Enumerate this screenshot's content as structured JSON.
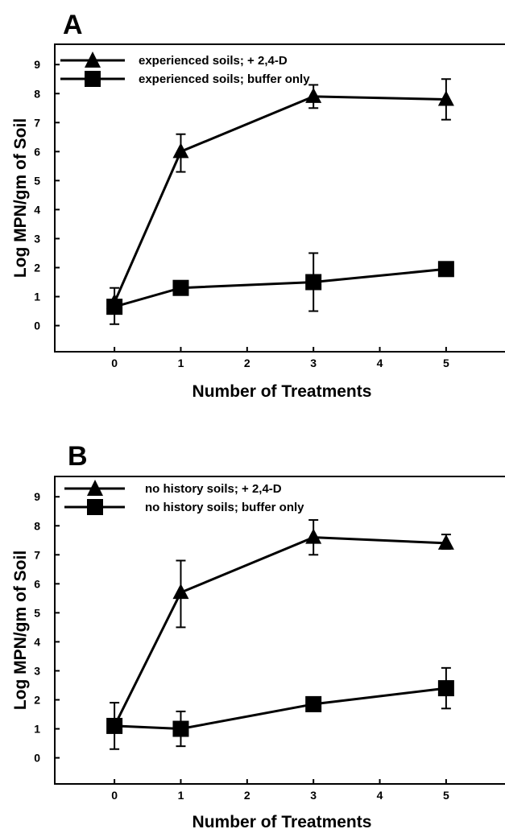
{
  "chart_data": [
    {
      "type": "line",
      "panel_label": "A",
      "xlabel": "Number  of  Treatments",
      "ylabel": "Log  MPN/gm  of  Soil",
      "xlim": [
        -0.9,
        5.9
      ],
      "ylim": [
        -0.9,
        9.7
      ],
      "x_ticks": [
        0,
        1,
        2,
        3,
        4,
        5
      ],
      "y_ticks": [
        0,
        1,
        2,
        3,
        4,
        5,
        6,
        7,
        8,
        9
      ],
      "legend_position": "top-left",
      "grid": false,
      "series": [
        {
          "name": "experienced soils; + 2,4-D",
          "marker": "triangle",
          "x": [
            0,
            1,
            3,
            5
          ],
          "y": [
            0.8,
            6.0,
            7.9,
            7.8
          ],
          "err_low": [
            0.8,
            5.3,
            7.5,
            7.1
          ],
          "err_high": [
            0.8,
            6.6,
            8.3,
            8.5
          ]
        },
        {
          "name": "experienced soils; buffer only",
          "marker": "square",
          "x": [
            0,
            1,
            3,
            5
          ],
          "y": [
            0.65,
            1.3,
            1.5,
            1.95
          ],
          "err_low": [
            0.05,
            1.3,
            0.5,
            1.95
          ],
          "err_high": [
            1.3,
            1.3,
            2.5,
            1.95
          ]
        }
      ]
    },
    {
      "type": "line",
      "panel_label": "B",
      "xlabel": "Number  of  Treatments",
      "ylabel": "Log  MPN/gm  of  Soil",
      "xlim": [
        -0.9,
        5.9
      ],
      "ylim": [
        -0.9,
        9.7
      ],
      "x_ticks": [
        0,
        1,
        2,
        3,
        4,
        5
      ],
      "y_ticks": [
        0,
        1,
        2,
        3,
        4,
        5,
        6,
        7,
        8,
        9
      ],
      "legend_position": "top-left",
      "grid": false,
      "series": [
        {
          "name": "no history soils; + 2,4-D",
          "marker": "triangle",
          "x": [
            0,
            1,
            3,
            5
          ],
          "y": [
            1.1,
            5.7,
            7.6,
            7.4
          ],
          "err_low": [
            1.1,
            4.5,
            7.0,
            7.2
          ],
          "err_high": [
            1.1,
            6.8,
            8.2,
            7.7
          ]
        },
        {
          "name": "no history soils; buffer only",
          "marker": "square",
          "x": [
            0,
            1,
            3,
            5
          ],
          "y": [
            1.1,
            1.0,
            1.85,
            2.4
          ],
          "err_low": [
            0.3,
            0.4,
            1.85,
            1.7
          ],
          "err_high": [
            1.9,
            1.6,
            1.85,
            3.1
          ]
        }
      ]
    }
  ]
}
